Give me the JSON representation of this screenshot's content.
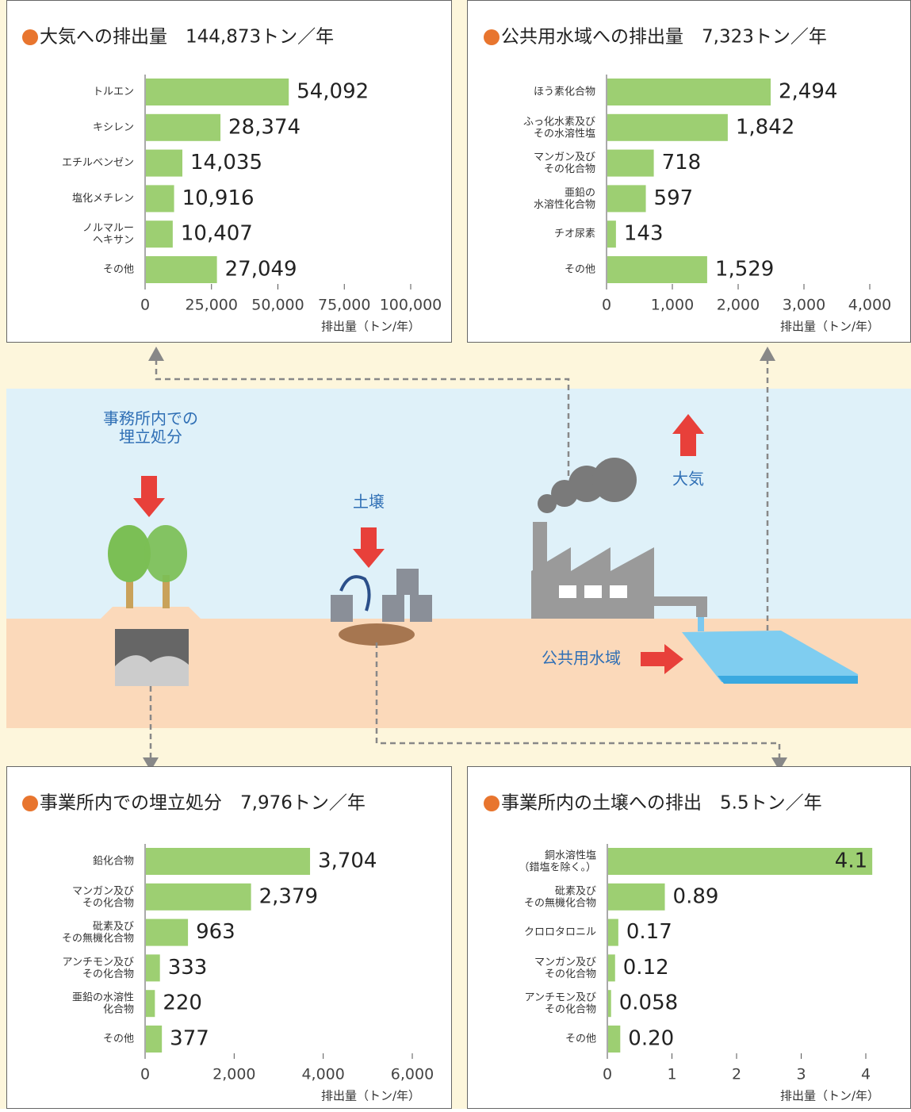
{
  "chart_data": [
    {
      "type": "bar",
      "orientation": "horizontal",
      "title": "大気への排出量　144,873トン／年",
      "color": "#9dcf72",
      "categories": [
        "トルエン",
        "キシレン",
        "エチルベンゼン",
        "塩化メチレン",
        "ノルマルー\nヘキサン",
        "その他"
      ],
      "values": [
        54092,
        28374,
        14035,
        10916,
        10407,
        27049
      ],
      "value_labels": [
        "54,092",
        "28,374",
        "14,035",
        "10,916",
        "10,407",
        "27,049"
      ],
      "xlim": [
        0,
        100000
      ],
      "xticks": [
        0,
        {
          "value": 25000,
          "label": "25,000"
        },
        {
          "value": 50000,
          "label": "50,000"
        },
        {
          "value": 75000,
          "label": "75,000"
        },
        {
          "value": 100000,
          "label": "100,000"
        }
      ],
      "xlabel": "排出量（トン/年）"
    },
    {
      "type": "bar",
      "orientation": "horizontal",
      "title": "公共用水域への排出量　7,323トン／年",
      "color": "#9dcf72",
      "categories": [
        "ほう素化合物",
        "ふっ化水素及び\nその水溶性塩",
        "マンガン及び\nその化合物",
        "亜鉛の\n水溶性化合物",
        "チオ尿素",
        "その他"
      ],
      "values": [
        2494,
        1842,
        718,
        597,
        143,
        1529
      ],
      "value_labels": [
        "2,494",
        "1,842",
        "718",
        "597",
        "143",
        "1,529"
      ],
      "xlim": [
        0,
        4000
      ],
      "xticks": [
        0,
        {
          "value": 1000,
          "label": "1,000"
        },
        {
          "value": 2000,
          "label": "2,000"
        },
        {
          "value": 3000,
          "label": "3,000"
        },
        {
          "value": 4000,
          "label": "4,000"
        }
      ],
      "xlabel": "排出量（トン/年）"
    },
    {
      "type": "bar",
      "orientation": "horizontal",
      "title": "事業所内での埋立処分　7,976トン／年",
      "color": "#9dcf72",
      "categories": [
        "鉛化合物",
        "マンガン及び\nその化合物",
        "砒素及び\nその無機化合物",
        "アンチモン及び\nその化合物",
        "亜鉛の水溶性\n化合物",
        "その他"
      ],
      "values": [
        3704,
        2379,
        963,
        333,
        220,
        377
      ],
      "value_labels": [
        "3,704",
        "2,379",
        "963",
        "333",
        "220",
        "377"
      ],
      "xlim": [
        0,
        6000
      ],
      "xticks": [
        0,
        {
          "value": 2000,
          "label": "2,000"
        },
        {
          "value": 4000,
          "label": "4,000"
        },
        {
          "value": 6000,
          "label": "6,000"
        }
      ],
      "xlabel": "排出量（トン/年）"
    },
    {
      "type": "bar",
      "orientation": "horizontal",
      "title": "事業所内の土壌への排出　5.5トン／年",
      "color": "#9dcf72",
      "categories": [
        "銅水溶性塩\n（錯塩を除く。）",
        "砒素及び\nその無機化合物",
        "クロロタロニル",
        "マンガン及び\nその化合物",
        "アンチモン及び\nその化合物",
        "その他"
      ],
      "values": [
        4.1,
        0.89,
        0.17,
        0.12,
        0.058,
        0.2
      ],
      "value_labels": [
        "4.1",
        "0.89",
        "0.17",
        "0.12",
        "0.058",
        "0.20"
      ],
      "xlim": [
        0,
        4
      ],
      "xticks": [
        0,
        1,
        2,
        3,
        4
      ],
      "xlabel": "排出量（トン/年）"
    }
  ],
  "diagram": {
    "landfill": "事務所内での\n埋立処分",
    "soil": "土壌",
    "air": "大気",
    "water": "公共用水域"
  }
}
